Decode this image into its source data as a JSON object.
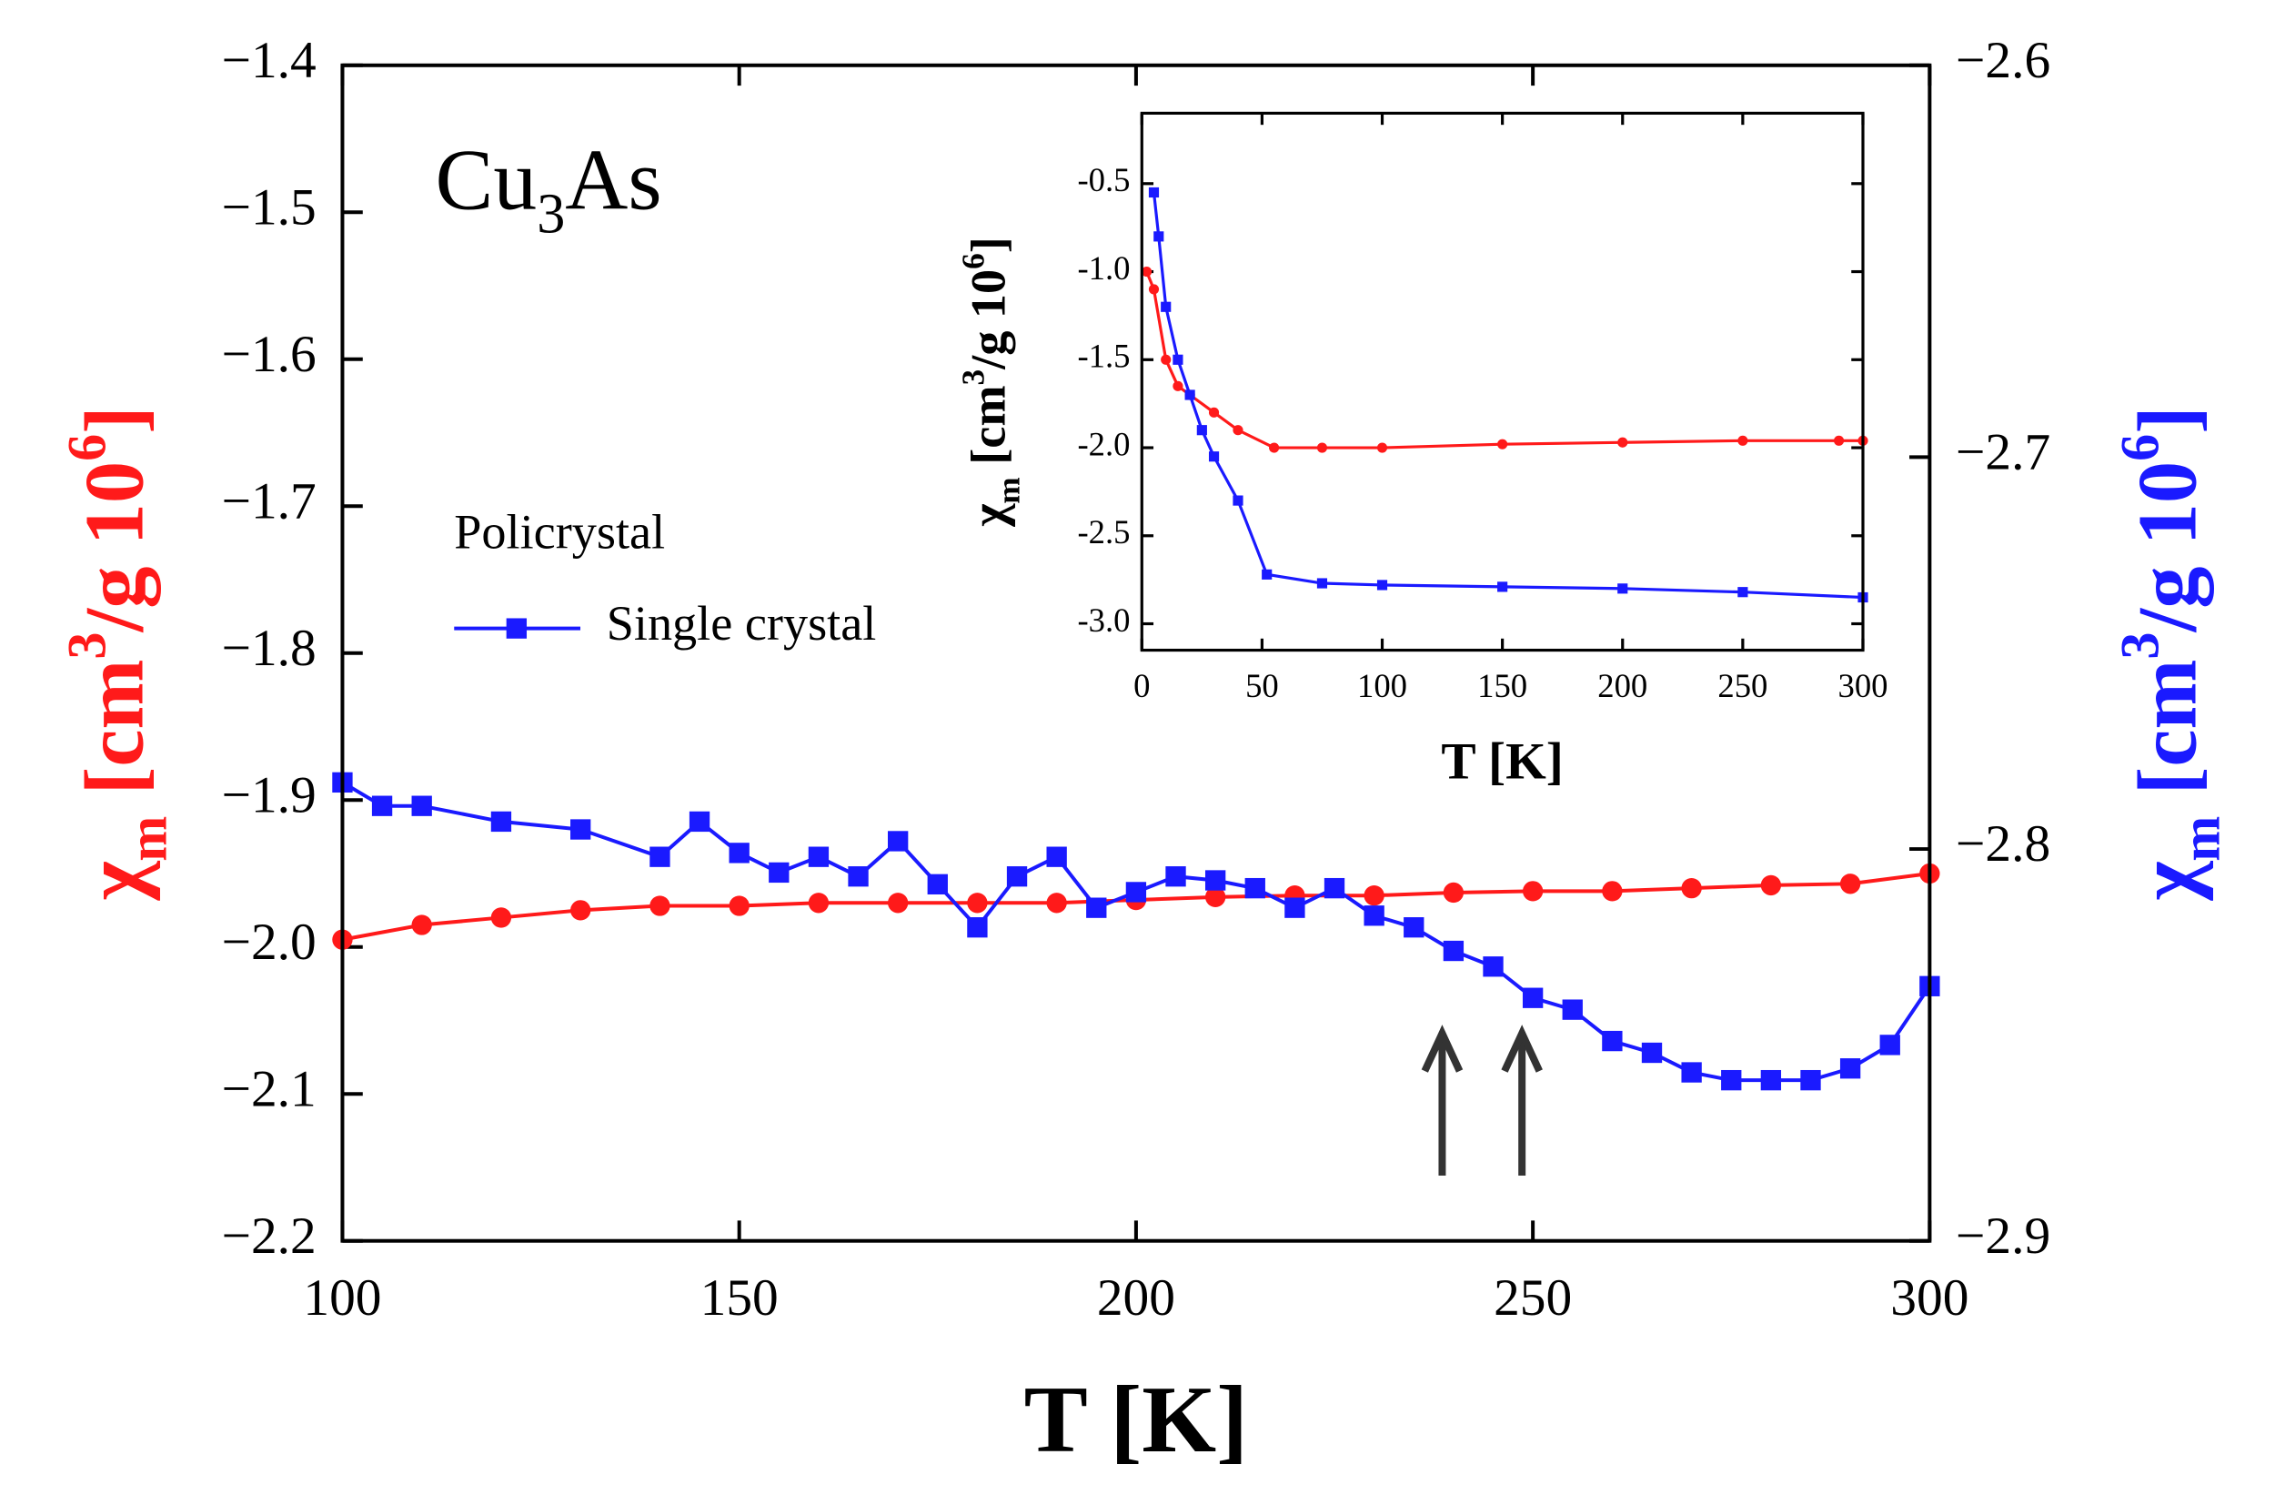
{
  "chart_data": [
    {
      "type": "line",
      "xlabel": "T [K]",
      "ylabel": [
        "χ",
        "m",
        " [cm",
        "3",
        "/g 10",
        "6",
        "]"
      ],
      "y2label": [
        "χ",
        "m",
        " [cm",
        "3",
        "/g 10",
        "6",
        "]"
      ],
      "annotation": [
        "Cu",
        "3",
        "As"
      ],
      "xlim": [
        100,
        300
      ],
      "xticks": [
        100,
        150,
        200,
        250,
        300
      ],
      "ylim": [
        -2.2,
        -1.4
      ],
      "yticks": [
        {
          "value": -2.2,
          "label": "−2.2"
        },
        {
          "value": -2.1,
          "label": "−2.1"
        },
        {
          "value": -2.0,
          "label": "−2.0"
        },
        {
          "value": -1.9,
          "label": "−1.9"
        },
        {
          "value": -1.8,
          "label": "−1.8"
        },
        {
          "value": -1.7,
          "label": "−1.7"
        },
        {
          "value": -1.6,
          "label": "−1.6"
        },
        {
          "value": -1.5,
          "label": "−1.5"
        },
        {
          "value": -1.4,
          "label": "−1.4"
        }
      ],
      "y2lim": [
        -2.9,
        -2.6
      ],
      "y2ticks": [
        {
          "value": -2.9,
          "label": "−2.9"
        },
        {
          "value": -2.8,
          "label": "−2.8"
        },
        {
          "value": -2.7,
          "label": "−2.7"
        },
        {
          "value": -2.6,
          "label": "−2.6"
        }
      ],
      "ylabel_color": "#ff1a1a",
      "y2label_color": "#1a1aff",
      "series": [
        {
          "name": "Policrystal",
          "color": "#ff1a1a",
          "marker": "circle",
          "axis": "y",
          "x": [
            100,
            110,
            120,
            130,
            140,
            150,
            160,
            170,
            180,
            190,
            200,
            210,
            220,
            230,
            240,
            250,
            260,
            270,
            280,
            290,
            300
          ],
          "values": [
            -1.995,
            -1.985,
            -1.98,
            -1.975,
            -1.972,
            -1.972,
            -1.97,
            -1.97,
            -1.97,
            -1.97,
            -1.968,
            -1.966,
            -1.965,
            -1.965,
            -1.963,
            -1.962,
            -1.962,
            -1.96,
            -1.958,
            -1.957,
            -1.95
          ]
        },
        {
          "name": "Single crystal",
          "color": "#1a1aff",
          "marker": "square",
          "axis": "y2",
          "x": [
            100,
            105,
            110,
            120,
            130,
            140,
            145,
            150,
            155,
            160,
            165,
            170,
            175,
            180,
            185,
            190,
            195,
            200,
            205,
            210,
            215,
            220,
            225,
            230,
            235,
            240,
            245,
            250,
            255,
            260,
            265,
            270,
            275,
            280,
            285,
            290,
            295,
            300
          ],
          "values": [
            -2.783,
            -2.789,
            -2.789,
            -2.793,
            -2.795,
            -2.802,
            -2.793,
            -2.801,
            -2.806,
            -2.802,
            -2.807,
            -2.798,
            -2.809,
            -2.82,
            -2.807,
            -2.802,
            -2.815,
            -2.811,
            -2.807,
            -2.808,
            -2.81,
            -2.815,
            -2.81,
            -2.817,
            -2.82,
            -2.826,
            -2.83,
            -2.838,
            -2.841,
            -2.849,
            -2.852,
            -2.857,
            -2.859,
            -2.859,
            -2.859,
            -2.856,
            -2.85,
            -2.835
          ]
        }
      ]
    },
    {
      "type": "line",
      "xlabel": "T [K]",
      "ylabel": [
        "χ",
        "m",
        " [cm",
        "3",
        "/g 10",
        "6",
        "]"
      ],
      "ylabel_color": "#000000",
      "xlim": [
        0,
        300
      ],
      "xticks": [
        0,
        50,
        100,
        150,
        200,
        250,
        300
      ],
      "ylim": [
        -3.15,
        -0.1
      ],
      "yticks": [
        {
          "value": -3.0,
          "label": "-3.0"
        },
        -2.5,
        {
          "value": -2.0,
          "label": "-2.0"
        },
        -1.5,
        {
          "value": -1.0,
          "label": "-1.0"
        },
        -0.5
      ],
      "series": [
        {
          "name": "Policrystal",
          "color": "#ff1a1a",
          "marker": "circle",
          "axis": "y",
          "x": [
            2,
            5,
            10,
            15,
            20,
            30,
            40,
            55,
            75,
            100,
            150,
            200,
            250,
            290,
            300
          ],
          "values": [
            -1.0,
            -1.1,
            -1.5,
            -1.65,
            -1.7,
            -1.8,
            -1.9,
            -2.0,
            -2.0,
            -2.0,
            -1.98,
            -1.97,
            -1.96,
            -1.96,
            -1.96
          ]
        },
        {
          "name": "Single crystal",
          "color": "#1a1aff",
          "marker": "square",
          "axis": "y",
          "x": [
            5,
            7,
            10,
            15,
            20,
            25,
            30,
            40,
            52,
            75,
            100,
            150,
            200,
            250,
            300
          ],
          "values": [
            -0.55,
            -0.8,
            -1.2,
            -1.5,
            -1.7,
            -1.9,
            -2.05,
            -2.3,
            -2.72,
            -2.77,
            -2.78,
            -2.79,
            -2.8,
            -2.82,
            -2.85
          ]
        }
      ]
    }
  ]
}
